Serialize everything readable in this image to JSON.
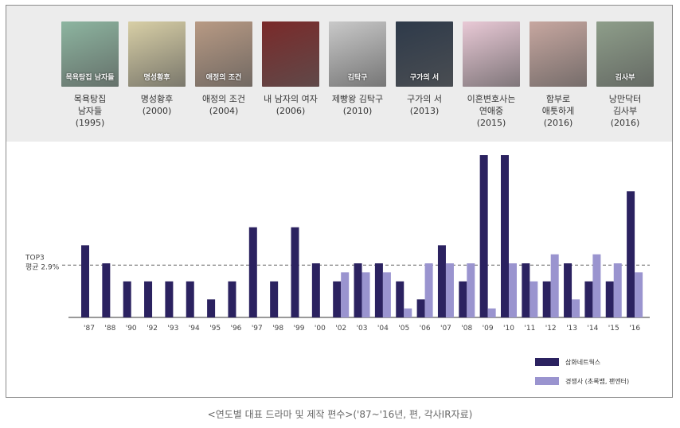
{
  "dramas": [
    {
      "title": "목욕탕집\n남자들",
      "year": "(1995)",
      "poster_color": "#8db5a0",
      "poster_text": "목욕탕집 남자들"
    },
    {
      "title": "명성황후",
      "year": "(2000)",
      "poster_color": "#d8cfa6",
      "poster_text": "명성황후"
    },
    {
      "title": "애정의 조건",
      "year": "(2004)",
      "poster_color": "#b89a84",
      "poster_text": "애정의 조건"
    },
    {
      "title": "내 남자의 여자",
      "year": "(2006)",
      "poster_color": "#7a2a2a",
      "poster_text": ""
    },
    {
      "title": "제빵왕 김탁구",
      "year": "(2010)",
      "poster_color": "#c9c9c9",
      "poster_text": "김탁구"
    },
    {
      "title": "구가의 서",
      "year": "(2013)",
      "poster_color": "#2e3a4a",
      "poster_text": "구가의 서"
    },
    {
      "title": "이혼변호사는\n연애중",
      "year": "(2015)",
      "poster_color": "#e9c9d6",
      "poster_text": ""
    },
    {
      "title": "함부로\n애틋하게",
      "year": "(2016)",
      "poster_color": "#c7a7a0",
      "poster_text": ""
    },
    {
      "title": "낭만닥터\n김사부",
      "year": "(2016)",
      "poster_color": "#8e9e8a",
      "poster_text": "김사부"
    }
  ],
  "chart_data": {
    "type": "bar",
    "categories": [
      "'87",
      "'88",
      "'90",
      "'92",
      "'93",
      "'94",
      "'95",
      "'96",
      "'97",
      "'98",
      "'99",
      "'00",
      "'02",
      "'03",
      "'04",
      "'05",
      "'06",
      "'07",
      "'08",
      "'09",
      "'10",
      "'11",
      "'12",
      "'13",
      "'14",
      "'15",
      "'16"
    ],
    "series": [
      {
        "name": "삼화네트웍스",
        "color": "#2b2260",
        "values": [
          4,
          3,
          2,
          2,
          2,
          2,
          1,
          2,
          5,
          2,
          5,
          3,
          2,
          3,
          3,
          2,
          1,
          4,
          2,
          9,
          9,
          3,
          2,
          3,
          2,
          2,
          7
        ]
      },
      {
        "name": "경쟁사 (초록뱀, 팬엔터)",
        "color": "#9a94cf",
        "values": [
          null,
          null,
          null,
          null,
          null,
          null,
          null,
          null,
          null,
          null,
          null,
          null,
          2.5,
          2.5,
          2.5,
          0.5,
          3,
          3,
          3,
          0.5,
          3,
          2,
          3.5,
          1,
          3.5,
          3,
          2.5
        ]
      }
    ],
    "reference_line": {
      "value": 2.9,
      "label_line1": "TOP3",
      "label_line2": "평균 2.9%"
    },
    "ylim": [
      0,
      9
    ]
  },
  "caption": "<연도별 대표 드라마 및 제작 편수>('87~'16년, 편, 각사IR자료)"
}
